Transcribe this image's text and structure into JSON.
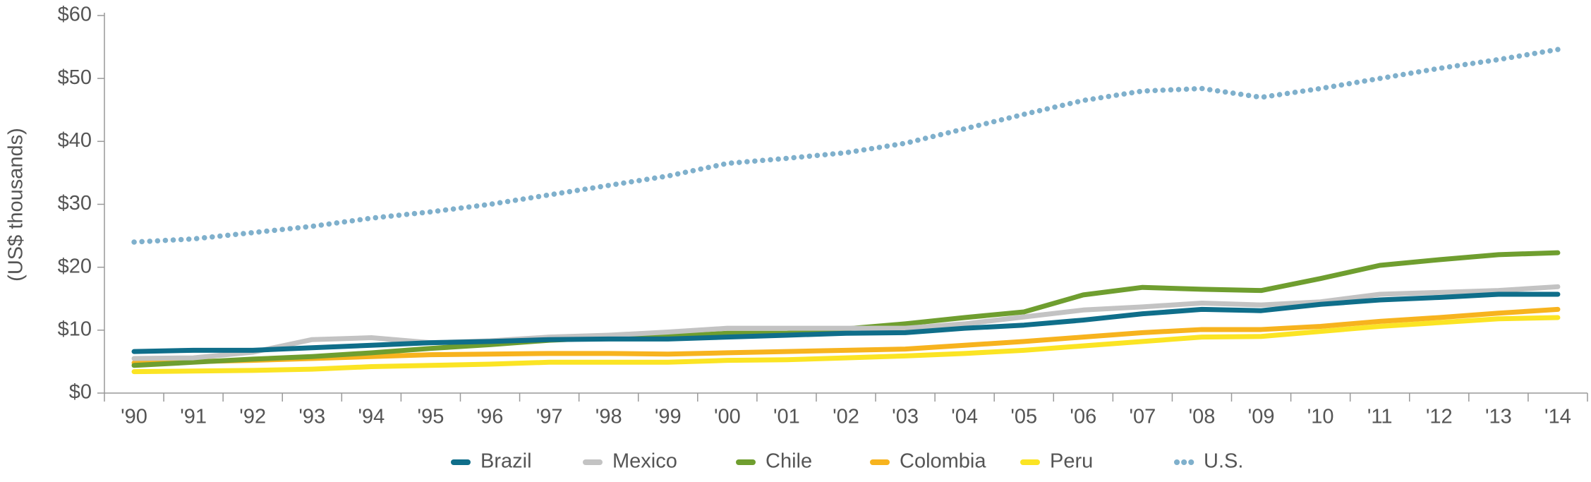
{
  "chart_data": {
    "type": "line",
    "y_label": "(US$ thousands)",
    "categories": [
      "'90",
      "'91",
      "'92",
      "'93",
      "'94",
      "'95",
      "'96",
      "'97",
      "'98",
      "'99",
      "'00",
      "'01",
      "'02",
      "'03",
      "'04",
      "'05",
      "'06",
      "'07",
      "'08",
      "'09",
      "'10",
      "'11",
      "'12",
      "'13",
      "'14"
    ],
    "series": [
      {
        "name": "Brazil",
        "color": "#0f6e8a",
        "style": "solid",
        "values": [
          6.6,
          6.8,
          6.8,
          7.2,
          7.6,
          8,
          8.2,
          8.5,
          8.6,
          8.6,
          8.9,
          9.2,
          9.5,
          9.6,
          10.3,
          10.8,
          11.6,
          12.6,
          13.3,
          13.1,
          14.1,
          14.8,
          15.2,
          15.7,
          15.7
        ]
      },
      {
        "name": "Mexico",
        "color": "#c3c3c3",
        "style": "solid",
        "values": [
          5.5,
          5.6,
          6.5,
          8.5,
          8.8,
          8,
          8.3,
          8.9,
          9.2,
          9.7,
          10.3,
          10.3,
          10.3,
          10.3,
          11,
          12.1,
          13.2,
          13.7,
          14.3,
          14,
          14.5,
          15.7,
          16,
          16.3,
          16.9
        ]
      },
      {
        "name": "Chile",
        "color": "#6f9e2f",
        "style": "solid",
        "values": [
          4.4,
          4.9,
          5.4,
          5.8,
          6.4,
          7.1,
          7.7,
          8.4,
          8.8,
          9,
          9.5,
          9.5,
          10.2,
          11,
          12,
          12.9,
          15.6,
          16.8,
          16.5,
          16.3,
          18.2,
          20.3,
          21.2,
          22,
          22.3
        ]
      },
      {
        "name": "Colombia",
        "color": "#f7b31e",
        "style": "solid",
        "values": [
          4.8,
          5,
          5.2,
          5.5,
          5.8,
          6.1,
          6.2,
          6.3,
          6.3,
          6.2,
          6.4,
          6.6,
          6.8,
          7,
          7.6,
          8.2,
          8.9,
          9.6,
          10.1,
          10.1,
          10.6,
          11.4,
          12,
          12.7,
          13.3
        ]
      },
      {
        "name": "Peru",
        "color": "#fbe424",
        "style": "solid",
        "values": [
          3.4,
          3.5,
          3.6,
          3.8,
          4.2,
          4.4,
          4.6,
          4.9,
          4.9,
          4.9,
          5.2,
          5.3,
          5.6,
          5.9,
          6.3,
          6.8,
          7.5,
          8.2,
          8.9,
          9,
          9.8,
          10.6,
          11.2,
          11.8,
          12
        ]
      },
      {
        "name": "U.S.",
        "color": "#7fb0cc",
        "style": "dotted",
        "values": [
          24,
          24.5,
          25.5,
          26.5,
          27.8,
          28.8,
          30,
          31.5,
          33,
          34.5,
          36.5,
          37.3,
          38.2,
          39.7,
          42,
          44.3,
          46.5,
          48,
          48.4,
          47,
          48.4,
          50,
          51.6,
          53,
          54.6
        ]
      }
    ],
    "ylim": [
      0,
      60
    ],
    "yticks": [
      {
        "value": 0,
        "label": "$0"
      },
      {
        "value": 10,
        "label": "$10"
      },
      {
        "value": 20,
        "label": "$20"
      },
      {
        "value": 30,
        "label": "$30"
      },
      {
        "value": 40,
        "label": "$40"
      },
      {
        "value": 50,
        "label": "$50"
      },
      {
        "value": 60,
        "label": "$60"
      }
    ],
    "legend": "bottom"
  }
}
